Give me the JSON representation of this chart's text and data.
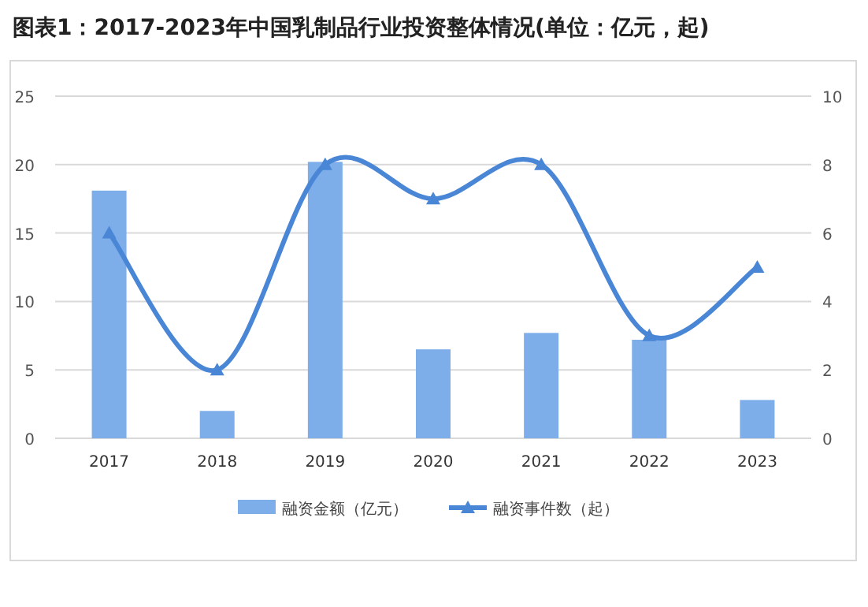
{
  "chart_data": {
    "type": "bar",
    "title": "图表1：2017-2023年中国乳制品行业投资整体情况(单位：亿元，起)",
    "categories": [
      "2017",
      "2018",
      "2019",
      "2020",
      "2021",
      "2022",
      "2023"
    ],
    "series": [
      {
        "name": "融资金额（亿元）",
        "color": "#7eaeea",
        "values": [
          18.1,
          2.0,
          20.2,
          6.5,
          7.7,
          7.2,
          2.8
        ]
      },
      {
        "name": "融资事件数（起）",
        "type": "line",
        "axis": "y2",
        "color": "#4a86d6",
        "marker": "triangle",
        "values": [
          6,
          2,
          8,
          7,
          8,
          3,
          5
        ]
      }
    ],
    "ylim": [
      0,
      25
    ],
    "yticks": [
      0,
      5,
      10,
      15,
      20,
      25
    ],
    "y2lim": [
      0,
      10
    ],
    "y2ticks": [
      0,
      2,
      4,
      6,
      8,
      10
    ],
    "grid": "y",
    "legend": "bottom"
  }
}
